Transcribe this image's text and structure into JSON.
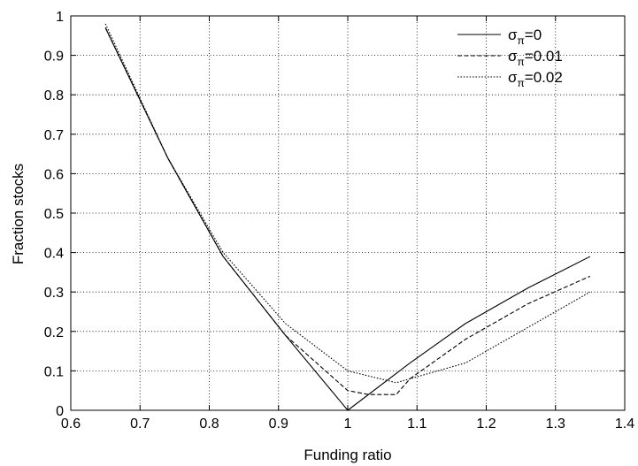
{
  "chart_data": {
    "type": "line",
    "title": "",
    "xlabel": "Funding ratio",
    "ylabel": "Fraction stocks",
    "xlim": [
      0.6,
      1.4
    ],
    "ylim": [
      0,
      1
    ],
    "xticks": [
      "0.6",
      "0.7",
      "0.8",
      "0.9",
      "1",
      "1.1",
      "1.2",
      "1.3",
      "1.4"
    ],
    "yticks": [
      "0",
      "0.1",
      "0.2",
      "0.3",
      "0.4",
      "0.5",
      "0.6",
      "0.7",
      "0.8",
      "0.9",
      "1"
    ],
    "grid": true,
    "legend_position": "top-right",
    "series": [
      {
        "symbol": "σ",
        "subscript": "π",
        "value_text": "=0",
        "line_style": "solid",
        "color": "#000000",
        "x": [
          0.65,
          0.74,
          0.82,
          0.91,
          1.0,
          1.09,
          1.17,
          1.26,
          1.35
        ],
        "y": [
          0.97,
          0.64,
          0.39,
          0.19,
          0.0,
          0.12,
          0.22,
          0.31,
          0.39
        ]
      },
      {
        "symbol": "σ",
        "subscript": "π",
        "value_text": "=0.01",
        "line_style": "dashed",
        "color": "#000000",
        "x": [
          0.65,
          0.74,
          0.82,
          0.91,
          1.0,
          1.03,
          1.07,
          1.09,
          1.17,
          1.26,
          1.35
        ],
        "y": [
          0.97,
          0.64,
          0.39,
          0.19,
          0.05,
          0.04,
          0.04,
          0.08,
          0.18,
          0.27,
          0.34
        ]
      },
      {
        "symbol": "σ",
        "subscript": "π",
        "value_text": "=0.02",
        "line_style": "dotted",
        "color": "#000000",
        "x": [
          0.65,
          0.74,
          0.82,
          0.91,
          1.0,
          1.07,
          1.09,
          1.17,
          1.26,
          1.35
        ],
        "y": [
          0.98,
          0.64,
          0.4,
          0.22,
          0.1,
          0.07,
          0.08,
          0.12,
          0.21,
          0.3
        ]
      }
    ]
  }
}
